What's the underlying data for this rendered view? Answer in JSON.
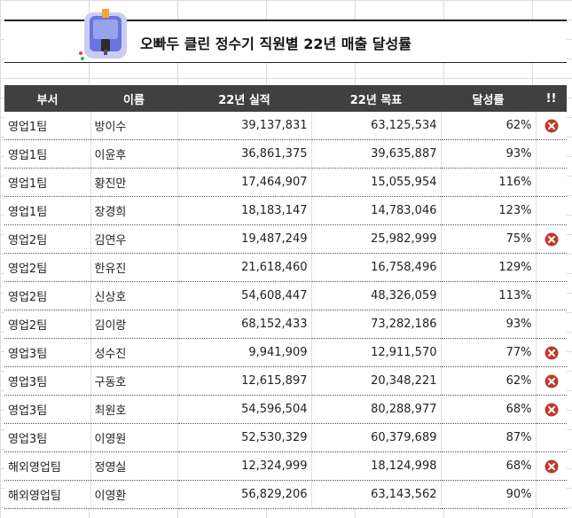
{
  "title": "오빠두 클린 정수기 직원별 22년 매출 달성률",
  "table": {
    "headers": [
      "부서",
      "이름",
      "22년 실적",
      "22년 목표",
      "달성률",
      "!!"
    ],
    "rows": [
      {
        "dept": "영업1팀",
        "name": "방이수",
        "actual": "39,137,831",
        "target": "63,125,534",
        "rate": "62%",
        "flag": true
      },
      {
        "dept": "영업1팀",
        "name": "이윤후",
        "actual": "36,861,375",
        "target": "39,635,887",
        "rate": "93%",
        "flag": false
      },
      {
        "dept": "영업1팀",
        "name": "황진만",
        "actual": "17,464,907",
        "target": "15,055,954",
        "rate": "116%",
        "flag": false
      },
      {
        "dept": "영업1팀",
        "name": "장경희",
        "actual": "18,183,147",
        "target": "14,783,046",
        "rate": "123%",
        "flag": false
      },
      {
        "dept": "영업2팀",
        "name": "김연우",
        "actual": "19,487,249",
        "target": "25,982,999",
        "rate": "75%",
        "flag": true
      },
      {
        "dept": "영업2팀",
        "name": "한유진",
        "actual": "21,618,460",
        "target": "16,758,496",
        "rate": "129%",
        "flag": false
      },
      {
        "dept": "영업2팀",
        "name": "신상호",
        "actual": "54,608,447",
        "target": "48,326,059",
        "rate": "113%",
        "flag": false
      },
      {
        "dept": "영업2팀",
        "name": "김이랑",
        "actual": "68,152,433",
        "target": "73,282,186",
        "rate": "93%",
        "flag": false
      },
      {
        "dept": "영업3팀",
        "name": "성수진",
        "actual": "9,941,909",
        "target": "12,911,570",
        "rate": "77%",
        "flag": true
      },
      {
        "dept": "영업3팀",
        "name": "구동호",
        "actual": "12,615,897",
        "target": "20,348,221",
        "rate": "62%",
        "flag": true
      },
      {
        "dept": "영업3팀",
        "name": "최원호",
        "actual": "54,596,504",
        "target": "80,288,977",
        "rate": "68%",
        "flag": true
      },
      {
        "dept": "영업3팀",
        "name": "이영원",
        "actual": "52,530,329",
        "target": "60,379,689",
        "rate": "87%",
        "flag": false
      },
      {
        "dept": "해외영업팀",
        "name": "정영실",
        "actual": "12,324,999",
        "target": "18,124,998",
        "rate": "68%",
        "flag": true
      },
      {
        "dept": "해외영업팀",
        "name": "이영환",
        "actual": "56,829,206",
        "target": "63,143,562",
        "rate": "90%",
        "flag": false
      }
    ]
  },
  "icons": {
    "title": "water-purifier-icon",
    "flag": "x-circle-icon"
  },
  "colors": {
    "header_bg": "#404040",
    "header_fg": "#ffffff",
    "flag": "#c0392b"
  }
}
